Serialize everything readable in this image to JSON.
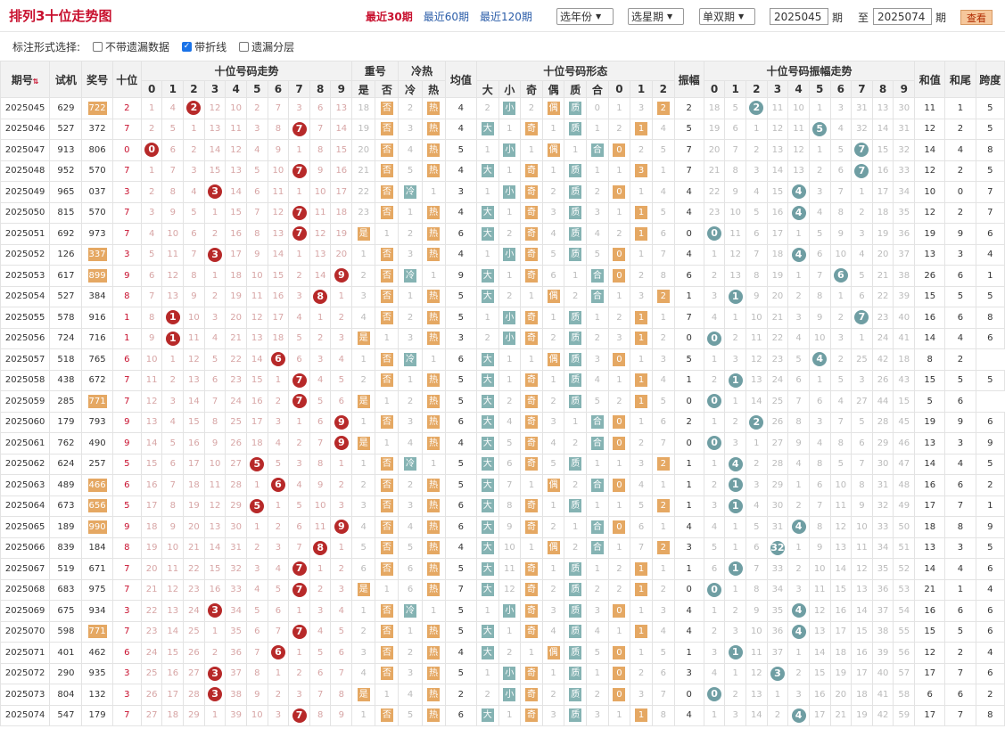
{
  "title": "排列3十位走势图",
  "periods": [
    "最近30期",
    "最近60期",
    "最近120期"
  ],
  "filters": {
    "year": "选年份",
    "week": "选星期",
    "oddeven": "单双期",
    "from": "2025045",
    "to": "2025074",
    "qi": "期",
    "zhi": "至",
    "view": "查看"
  },
  "options": {
    "label": "标注形式选择:",
    "items": [
      {
        "label": "不带遗漏数据",
        "checked": false
      },
      {
        "label": "带折线",
        "checked": true
      },
      {
        "label": "遗漏分层",
        "checked": false
      }
    ]
  },
  "headers": {
    "qihao": "期号",
    "sort": "▲▼",
    "shiji": "试机",
    "jianghao": "奖号",
    "shiwei": "十位",
    "trend": "十位号码走势",
    "chong": "重号",
    "lengre": "冷热",
    "junzhi": "均值",
    "xingtai": "十位号码形态",
    "zhenfu": "振幅",
    "zftrend": "十位号码振幅走势",
    "hezhi": "和值",
    "hewei": "和尾",
    "kuadu": "跨度",
    "digits": [
      "0",
      "1",
      "2",
      "3",
      "4",
      "5",
      "6",
      "7",
      "8",
      "9"
    ],
    "chong_sub": [
      "是",
      "否"
    ],
    "lr_sub": [
      "冷",
      "热"
    ],
    "xt_sub": [
      "大",
      "小",
      "奇",
      "偶",
      "质",
      "合",
      "0",
      "1",
      "2"
    ]
  },
  "rows": [
    {
      "id": "2025045",
      "c": [
        "629",
        "722",
        "2",
        "1",
        "4",
        "2",
        "12",
        "10",
        "2",
        "7",
        "3",
        "6",
        "13",
        "18",
        "否",
        "2",
        "热",
        "4",
        "2",
        "小",
        "2",
        "偶",
        "质",
        "0",
        "1",
        "3",
        "2",
        "2",
        "18",
        "5",
        "2",
        "11",
        "10",
        "1",
        "3",
        "31",
        "13",
        "30",
        "11",
        "1",
        "5"
      ],
      "hl": true
    },
    {
      "id": "2025046",
      "c": [
        "527",
        "372",
        "7",
        "2",
        "5",
        "1",
        "13",
        "11",
        "3",
        "8",
        "7",
        "7",
        "14",
        "19",
        "否",
        "3",
        "热",
        "4",
        "大",
        "1",
        "奇",
        "1",
        "质",
        "1",
        "2",
        "1",
        "4",
        "5",
        "19",
        "6",
        "1",
        "12",
        "11",
        "5",
        "4",
        "32",
        "14",
        "31",
        "12",
        "2",
        "5"
      ],
      "hl": false
    },
    {
      "id": "2025047",
      "c": [
        "913",
        "806",
        "0",
        "0",
        "6",
        "2",
        "14",
        "12",
        "4",
        "9",
        "1",
        "8",
        "15",
        "20",
        "否",
        "4",
        "热",
        "5",
        "1",
        "小",
        "1",
        "偶",
        "1",
        "合",
        "0",
        "2",
        "5",
        "7",
        "20",
        "7",
        "2",
        "13",
        "12",
        "1",
        "5",
        "7",
        "15",
        "32",
        "14",
        "4",
        "8"
      ],
      "hl": false
    },
    {
      "id": "2025048",
      "c": [
        "952",
        "570",
        "7",
        "1",
        "7",
        "3",
        "15",
        "13",
        "5",
        "10",
        "7",
        "9",
        "16",
        "21",
        "否",
        "5",
        "热",
        "4",
        "大",
        "1",
        "奇",
        "1",
        "质",
        "1",
        "1",
        "3",
        "1",
        "7",
        "21",
        "8",
        "3",
        "14",
        "13",
        "2",
        "6",
        "7",
        "16",
        "33",
        "12",
        "2",
        "5"
      ],
      "hl": false
    },
    {
      "id": "2025049",
      "c": [
        "965",
        "037",
        "3",
        "2",
        "8",
        "4",
        "3",
        "14",
        "6",
        "11",
        "1",
        "10",
        "17",
        "22",
        "否",
        "冷",
        "1",
        "3",
        "1",
        "小",
        "奇",
        "2",
        "质",
        "2",
        "0",
        "1",
        "4",
        "4",
        "22",
        "9",
        "4",
        "15",
        "4",
        "3",
        "7",
        "1",
        "17",
        "34",
        "10",
        "0",
        "7"
      ],
      "hl": false
    },
    {
      "id": "2025050",
      "c": [
        "815",
        "570",
        "7",
        "3",
        "9",
        "5",
        "1",
        "15",
        "7",
        "12",
        "7",
        "11",
        "18",
        "23",
        "否",
        "1",
        "热",
        "4",
        "大",
        "1",
        "奇",
        "3",
        "质",
        "3",
        "1",
        "1",
        "5",
        "4",
        "23",
        "10",
        "5",
        "16",
        "4",
        "4",
        "8",
        "2",
        "18",
        "35",
        "12",
        "2",
        "7"
      ],
      "hl": false
    },
    {
      "id": "2025051",
      "c": [
        "692",
        "973",
        "7",
        "4",
        "10",
        "6",
        "2",
        "16",
        "8",
        "13",
        "7",
        "12",
        "19",
        "是",
        "1",
        "2",
        "热",
        "6",
        "大",
        "2",
        "奇",
        "4",
        "质",
        "4",
        "2",
        "1",
        "6",
        "0",
        "0",
        "11",
        "6",
        "17",
        "1",
        "5",
        "9",
        "3",
        "19",
        "36",
        "19",
        "9",
        "6"
      ],
      "hl": false
    },
    {
      "id": "2025052",
      "c": [
        "126",
        "337",
        "3",
        "5",
        "11",
        "7",
        "3",
        "17",
        "9",
        "14",
        "1",
        "13",
        "20",
        "1",
        "否",
        "3",
        "热",
        "4",
        "1",
        "小",
        "奇",
        "5",
        "质",
        "5",
        "0",
        "1",
        "7",
        "4",
        "1",
        "12",
        "7",
        "18",
        "4",
        "6",
        "10",
        "4",
        "20",
        "37",
        "13",
        "3",
        "4"
      ],
      "hl": true
    },
    {
      "id": "2025053",
      "c": [
        "617",
        "899",
        "9",
        "6",
        "12",
        "8",
        "1",
        "18",
        "10",
        "15",
        "2",
        "14",
        "9",
        "2",
        "否",
        "冷",
        "1",
        "9",
        "大",
        "1",
        "奇",
        "6",
        "1",
        "合",
        "0",
        "2",
        "8",
        "6",
        "2",
        "13",
        "8",
        "19",
        "1",
        "7",
        "6",
        "5",
        "21",
        "38",
        "26",
        "6",
        "1"
      ],
      "hl": true
    },
    {
      "id": "2025054",
      "c": [
        "527",
        "384",
        "8",
        "7",
        "13",
        "9",
        "2",
        "19",
        "11",
        "16",
        "3",
        "8",
        "1",
        "3",
        "否",
        "1",
        "热",
        "5",
        "大",
        "2",
        "1",
        "偶",
        "2",
        "合",
        "1",
        "3",
        "2",
        "1",
        "3",
        "1",
        "9",
        "20",
        "2",
        "8",
        "1",
        "6",
        "22",
        "39",
        "15",
        "5",
        "5"
      ],
      "hl": false
    },
    {
      "id": "2025055",
      "c": [
        "578",
        "916",
        "1",
        "8",
        "1",
        "10",
        "3",
        "20",
        "12",
        "17",
        "4",
        "1",
        "2",
        "4",
        "否",
        "2",
        "热",
        "5",
        "1",
        "小",
        "奇",
        "1",
        "质",
        "1",
        "2",
        "1",
        "1",
        "7",
        "4",
        "1",
        "10",
        "21",
        "3",
        "9",
        "2",
        "7",
        "23",
        "40",
        "16",
        "6",
        "8"
      ],
      "hl": false
    },
    {
      "id": "2025056",
      "c": [
        "724",
        "716",
        "1",
        "9",
        "1",
        "11",
        "4",
        "21",
        "13",
        "18",
        "5",
        "2",
        "3",
        "是",
        "1",
        "3",
        "热",
        "3",
        "2",
        "小",
        "奇",
        "2",
        "质",
        "2",
        "3",
        "1",
        "2",
        "0",
        "0",
        "2",
        "11",
        "22",
        "4",
        "10",
        "3",
        "1",
        "24",
        "41",
        "14",
        "4",
        "6"
      ],
      "hl": false
    },
    {
      "id": "2025057",
      "c": [
        "518",
        "765",
        "6",
        "10",
        "1",
        "12",
        "5",
        "22",
        "14",
        "6",
        "6",
        "3",
        "4",
        "1",
        "否",
        "冷",
        "1",
        "6",
        "大",
        "1",
        "1",
        "偶",
        "质",
        "3",
        "0",
        "1",
        "3",
        "5",
        "1",
        "3",
        "12",
        "23",
        "5",
        "4",
        "2",
        "25",
        "42",
        "18",
        "8",
        "2"
      ],
      "hl": false
    },
    {
      "id": "2025058",
      "c": [
        "438",
        "672",
        "7",
        "11",
        "2",
        "13",
        "6",
        "23",
        "15",
        "1",
        "7",
        "4",
        "5",
        "2",
        "否",
        "1",
        "热",
        "5",
        "大",
        "1",
        "奇",
        "1",
        "质",
        "4",
        "1",
        "1",
        "4",
        "1",
        "2",
        "1",
        "13",
        "24",
        "6",
        "1",
        "5",
        "3",
        "26",
        "43",
        "15",
        "5",
        "5"
      ],
      "hl": false
    },
    {
      "id": "2025059",
      "c": [
        "285",
        "771",
        "7",
        "12",
        "3",
        "14",
        "7",
        "24",
        "16",
        "2",
        "7",
        "5",
        "6",
        "是",
        "1",
        "2",
        "热",
        "5",
        "大",
        "2",
        "奇",
        "2",
        "质",
        "5",
        "2",
        "1",
        "5",
        "0",
        "0",
        "1",
        "14",
        "25",
        "7",
        "6",
        "4",
        "27",
        "44",
        "15",
        "5",
        "6"
      ],
      "hl": true
    },
    {
      "id": "2025060",
      "c": [
        "179",
        "793",
        "9",
        "13",
        "4",
        "15",
        "8",
        "25",
        "17",
        "3",
        "1",
        "6",
        "9",
        "1",
        "否",
        "3",
        "热",
        "6",
        "大",
        "4",
        "奇",
        "3",
        "1",
        "合",
        "0",
        "1",
        "6",
        "2",
        "1",
        "2",
        "2",
        "26",
        "8",
        "3",
        "7",
        "5",
        "28",
        "45",
        "19",
        "9",
        "6"
      ],
      "hl": false
    },
    {
      "id": "2025061",
      "c": [
        "762",
        "490",
        "9",
        "14",
        "5",
        "16",
        "9",
        "26",
        "18",
        "4",
        "2",
        "7",
        "9",
        "是",
        "1",
        "4",
        "热",
        "4",
        "大",
        "5",
        "奇",
        "4",
        "2",
        "合",
        "0",
        "2",
        "7",
        "0",
        "0",
        "3",
        "1",
        "27",
        "9",
        "4",
        "8",
        "6",
        "29",
        "46",
        "13",
        "3",
        "9"
      ],
      "hl": false
    },
    {
      "id": "2025062",
      "c": [
        "624",
        "257",
        "5",
        "15",
        "6",
        "17",
        "10",
        "27",
        "5",
        "5",
        "3",
        "8",
        "1",
        "1",
        "否",
        "冷",
        "1",
        "5",
        "大",
        "6",
        "奇",
        "5",
        "质",
        "1",
        "1",
        "3",
        "2",
        "1",
        "1",
        "4",
        "2",
        "28",
        "4",
        "8",
        "5",
        "7",
        "30",
        "47",
        "14",
        "4",
        "5"
      ],
      "hl": false
    },
    {
      "id": "2025063",
      "c": [
        "489",
        "466",
        "6",
        "16",
        "7",
        "18",
        "11",
        "28",
        "1",
        "6",
        "4",
        "9",
        "2",
        "2",
        "否",
        "2",
        "热",
        "5",
        "大",
        "7",
        "1",
        "偶",
        "2",
        "合",
        "0",
        "4",
        "1",
        "1",
        "2",
        "1",
        "3",
        "29",
        "1",
        "6",
        "10",
        "8",
        "31",
        "48",
        "16",
        "6",
        "2"
      ],
      "hl": true
    },
    {
      "id": "2025064",
      "c": [
        "673",
        "656",
        "5",
        "17",
        "8",
        "19",
        "12",
        "29",
        "5",
        "1",
        "5",
        "10",
        "3",
        "3",
        "否",
        "3",
        "热",
        "6",
        "大",
        "8",
        "奇",
        "1",
        "质",
        "1",
        "1",
        "5",
        "2",
        "1",
        "3",
        "1",
        "4",
        "30",
        "2",
        "7",
        "11",
        "9",
        "32",
        "49",
        "17",
        "7",
        "1"
      ],
      "hl": true
    },
    {
      "id": "2025065",
      "c": [
        "189",
        "990",
        "9",
        "18",
        "9",
        "20",
        "13",
        "30",
        "1",
        "2",
        "6",
        "11",
        "9",
        "4",
        "否",
        "4",
        "热",
        "6",
        "大",
        "9",
        "奇",
        "2",
        "1",
        "合",
        "0",
        "6",
        "1",
        "4",
        "4",
        "1",
        "5",
        "31",
        "4",
        "8",
        "12",
        "10",
        "33",
        "50",
        "18",
        "8",
        "9"
      ],
      "hl": true
    },
    {
      "id": "2025066",
      "c": [
        "839",
        "184",
        "8",
        "19",
        "10",
        "21",
        "14",
        "31",
        "2",
        "3",
        "7",
        "8",
        "1",
        "5",
        "否",
        "5",
        "热",
        "4",
        "大",
        "10",
        "1",
        "偶",
        "2",
        "合",
        "1",
        "7",
        "2",
        "3",
        "5",
        "1",
        "6",
        "32",
        "1",
        "9",
        "13",
        "11",
        "34",
        "51",
        "13",
        "3",
        "5"
      ],
      "hl": false
    },
    {
      "id": "2025067",
      "c": [
        "519",
        "671",
        "7",
        "20",
        "11",
        "22",
        "15",
        "32",
        "3",
        "4",
        "7",
        "1",
        "2",
        "6",
        "否",
        "6",
        "热",
        "5",
        "大",
        "11",
        "奇",
        "1",
        "质",
        "1",
        "2",
        "1",
        "1",
        "1",
        "6",
        "1",
        "7",
        "33",
        "2",
        "10",
        "14",
        "12",
        "35",
        "52",
        "14",
        "4",
        "6"
      ],
      "hl": false
    },
    {
      "id": "2025068",
      "c": [
        "683",
        "975",
        "7",
        "21",
        "12",
        "23",
        "16",
        "33",
        "4",
        "5",
        "7",
        "2",
        "3",
        "是",
        "1",
        "6",
        "热",
        "7",
        "大",
        "12",
        "奇",
        "2",
        "质",
        "2",
        "2",
        "1",
        "2",
        "0",
        "0",
        "1",
        "8",
        "34",
        "3",
        "11",
        "15",
        "13",
        "36",
        "53",
        "21",
        "1",
        "4"
      ],
      "hl": false
    },
    {
      "id": "2025069",
      "c": [
        "675",
        "934",
        "3",
        "22",
        "13",
        "24",
        "3",
        "34",
        "5",
        "6",
        "1",
        "3",
        "4",
        "1",
        "否",
        "冷",
        "1",
        "5",
        "1",
        "小",
        "奇",
        "3",
        "质",
        "3",
        "0",
        "1",
        "3",
        "4",
        "1",
        "2",
        "9",
        "35",
        "4",
        "12",
        "16",
        "14",
        "37",
        "54",
        "16",
        "6",
        "6"
      ],
      "hl": false
    },
    {
      "id": "2025070",
      "c": [
        "598",
        "771",
        "7",
        "23",
        "14",
        "25",
        "1",
        "35",
        "6",
        "7",
        "7",
        "4",
        "5",
        "2",
        "否",
        "1",
        "热",
        "5",
        "大",
        "1",
        "奇",
        "4",
        "质",
        "4",
        "1",
        "1",
        "4",
        "4",
        "2",
        "3",
        "10",
        "36",
        "4",
        "13",
        "17",
        "15",
        "38",
        "55",
        "15",
        "5",
        "6"
      ],
      "hl": true
    },
    {
      "id": "2025071",
      "c": [
        "401",
        "462",
        "6",
        "24",
        "15",
        "26",
        "2",
        "36",
        "7",
        "6",
        "1",
        "5",
        "6",
        "3",
        "否",
        "2",
        "热",
        "4",
        "大",
        "2",
        "1",
        "偶",
        "质",
        "5",
        "0",
        "1",
        "5",
        "1",
        "3",
        "1",
        "11",
        "37",
        "1",
        "14",
        "18",
        "16",
        "39",
        "56",
        "12",
        "2",
        "4"
      ],
      "hl": false
    },
    {
      "id": "2025072",
      "c": [
        "290",
        "935",
        "3",
        "25",
        "16",
        "27",
        "3",
        "37",
        "8",
        "1",
        "2",
        "6",
        "7",
        "4",
        "否",
        "3",
        "热",
        "5",
        "1",
        "小",
        "奇",
        "1",
        "质",
        "1",
        "0",
        "2",
        "6",
        "3",
        "4",
        "1",
        "12",
        "3",
        "2",
        "15",
        "19",
        "17",
        "40",
        "57",
        "17",
        "7",
        "6"
      ],
      "hl": false
    },
    {
      "id": "2025073",
      "c": [
        "804",
        "132",
        "3",
        "26",
        "17",
        "28",
        "3",
        "38",
        "9",
        "2",
        "3",
        "7",
        "8",
        "是",
        "1",
        "4",
        "热",
        "2",
        "2",
        "小",
        "奇",
        "2",
        "质",
        "2",
        "0",
        "3",
        "7",
        "0",
        "0",
        "2",
        "13",
        "1",
        "3",
        "16",
        "20",
        "18",
        "41",
        "58",
        "6",
        "6",
        "2"
      ],
      "hl": false
    },
    {
      "id": "2025074",
      "c": [
        "547",
        "179",
        "7",
        "27",
        "18",
        "29",
        "1",
        "39",
        "10",
        "3",
        "7",
        "8",
        "9",
        "1",
        "否",
        "5",
        "热",
        "6",
        "大",
        "1",
        "奇",
        "3",
        "质",
        "3",
        "1",
        "1",
        "8",
        "4",
        "1",
        "3",
        "14",
        "2",
        "4",
        "17",
        "21",
        "19",
        "42",
        "59",
        "17",
        "7",
        "8"
      ],
      "hl": false
    }
  ]
}
